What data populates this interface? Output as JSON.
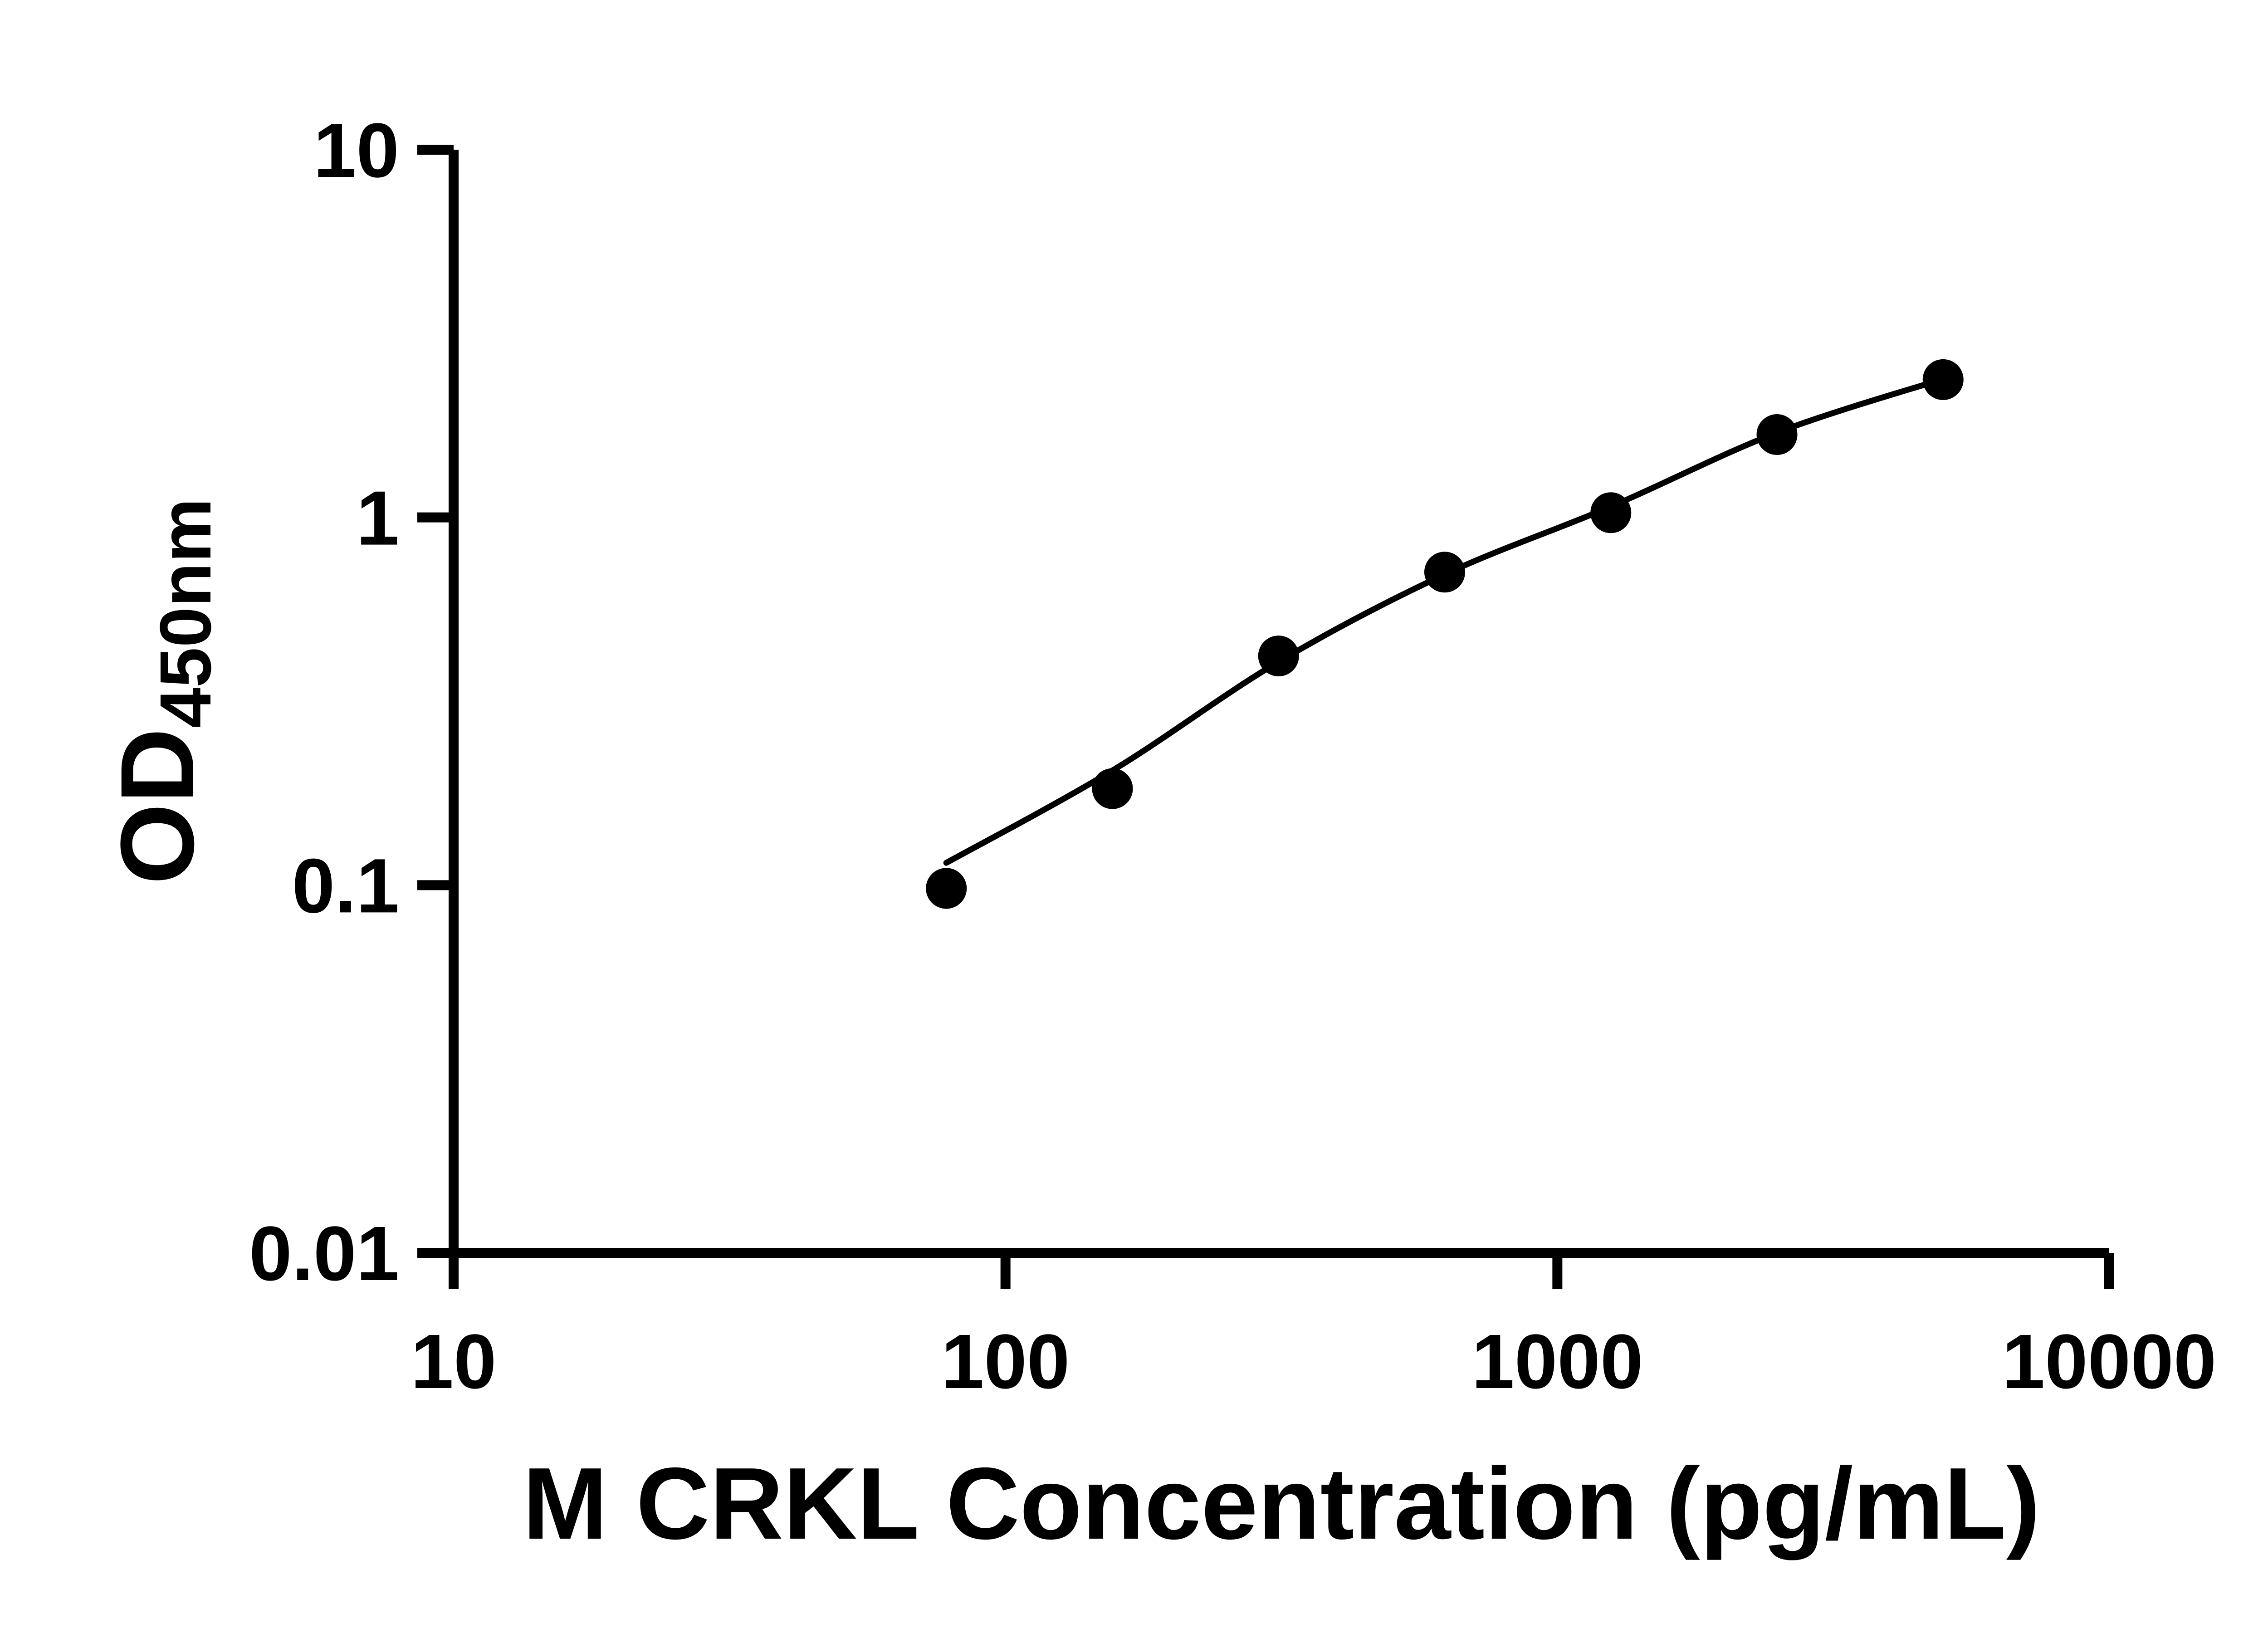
{
  "background": "#ffffff",
  "chart_data": {
    "type": "scatter",
    "title": "",
    "xlabel": "M CRKL Concentration (pg/mL)",
    "ylabel": "OD450nm",
    "ylabel_main": "OD",
    "ylabel_sub": "450nm",
    "x_scale": "log",
    "y_scale": "log",
    "xlim": [
      10,
      10000
    ],
    "ylim": [
      0.01,
      10
    ],
    "x_ticks": [
      "10",
      "100",
      "1000",
      "10000"
    ],
    "y_ticks": [
      "0.01",
      "0.1",
      "1",
      "10"
    ],
    "grid": false,
    "legend": false,
    "marker_color": "#000000",
    "line_color": "#000000",
    "axis_color": "#000000",
    "points": [
      {
        "x": 78.125,
        "y": 0.098
      },
      {
        "x": 156.25,
        "y": 0.183
      },
      {
        "x": 312.5,
        "y": 0.42
      },
      {
        "x": 625,
        "y": 0.71
      },
      {
        "x": 1250,
        "y": 1.03
      },
      {
        "x": 2500,
        "y": 1.68
      },
      {
        "x": 5000,
        "y": 2.37
      }
    ],
    "has_fit_curve": true,
    "fit_curve": [
      {
        "x": 78.125,
        "y": 0.115
      },
      {
        "x": 156.25,
        "y": 0.205
      },
      {
        "x": 312.5,
        "y": 0.405
      },
      {
        "x": 625,
        "y": 0.7
      },
      {
        "x": 1250,
        "y": 1.07
      },
      {
        "x": 2500,
        "y": 1.7
      },
      {
        "x": 5000,
        "y": 2.38
      }
    ]
  }
}
